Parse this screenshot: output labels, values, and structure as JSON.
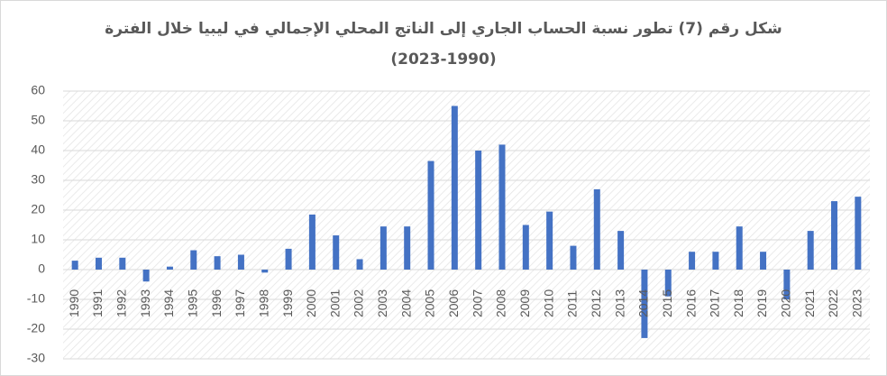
{
  "chart_data": {
    "type": "bar",
    "title": "شكل رقم (7) تطور نسبة الحساب الجاري إلى الناتج المحلي الإجمالي في ليبيا خلال الفترة",
    "subtitle": "(2023-1990)",
    "categories": [
      "1990",
      "1991",
      "1992",
      "1993",
      "1994",
      "1995",
      "1996",
      "1997",
      "1998",
      "1999",
      "2000",
      "2001",
      "2002",
      "2003",
      "2004",
      "2005",
      "2006",
      "2007",
      "2008",
      "2009",
      "2010",
      "2011",
      "2012",
      "2013",
      "2014",
      "2015",
      "2016",
      "2017",
      "2018",
      "2019",
      "2020",
      "2021",
      "2022",
      "2023"
    ],
    "values": [
      3,
      4,
      4,
      -4,
      1,
      6.5,
      4.5,
      5,
      -1,
      7,
      18.5,
      11.5,
      3.5,
      14.5,
      14.5,
      36.5,
      55,
      40,
      42,
      15,
      19.5,
      8,
      27,
      13,
      -23,
      -9,
      6,
      6,
      14.5,
      6,
      -10,
      13,
      23,
      24.5
    ],
    "color": "#4472c4",
    "ylim": [
      -30,
      60
    ],
    "yticks": [
      -30,
      -20,
      -10,
      0,
      10,
      20,
      30,
      40,
      50,
      60
    ],
    "grid": true
  }
}
